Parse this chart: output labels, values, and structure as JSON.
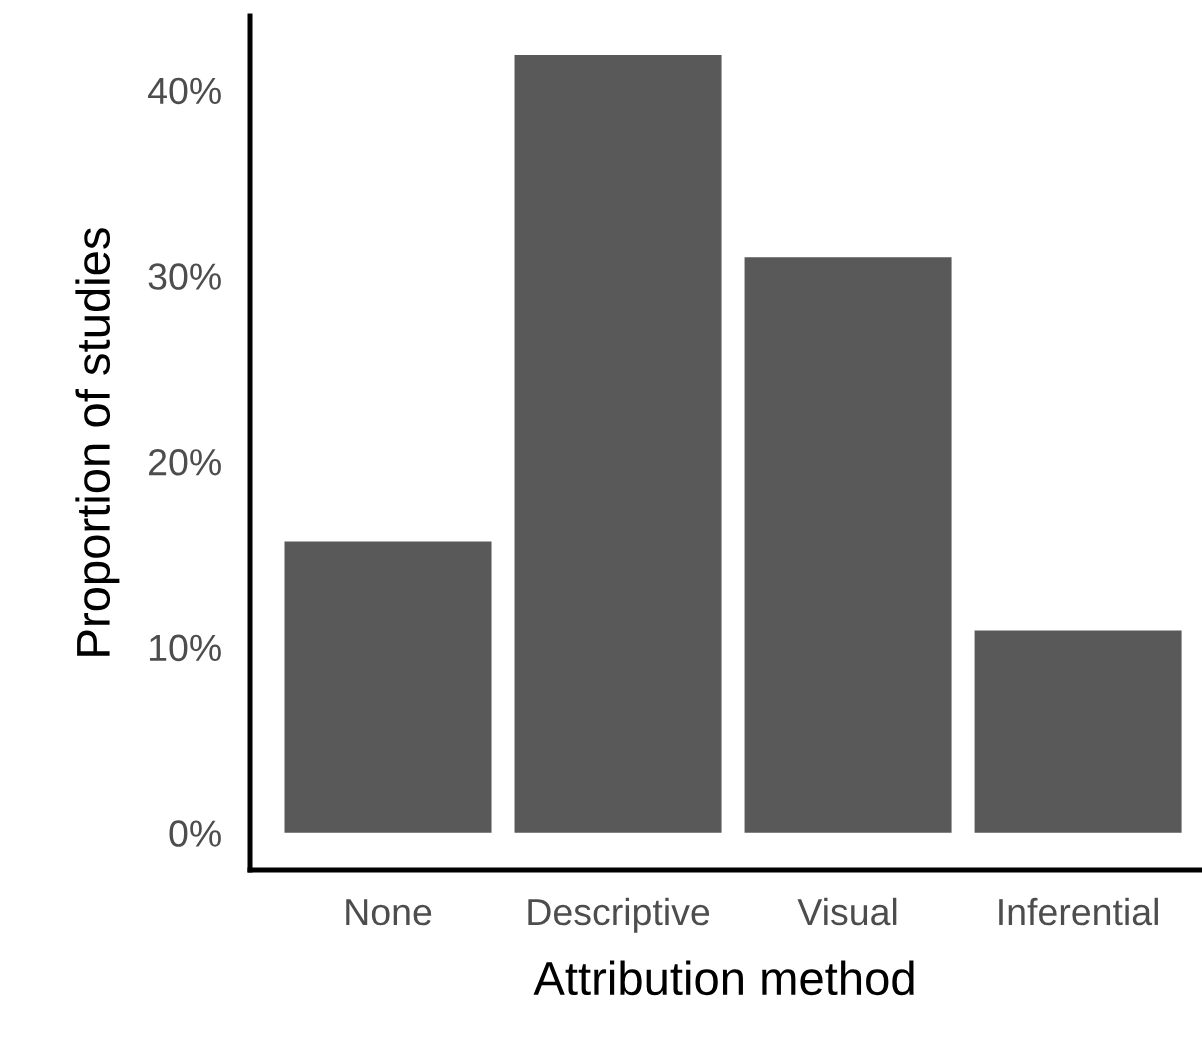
{
  "chart_data": {
    "type": "bar",
    "xlabel": "Attribution method",
    "ylabel": "Proportion of studies",
    "categories": [
      "None",
      "Descriptive",
      "Visual",
      "Inferential"
    ],
    "values": [
      15.7,
      41.9,
      31.0,
      10.9
    ],
    "color": "#595959",
    "ylim": [
      -2,
      44
    ],
    "yticks": [
      {
        "value": 0,
        "label": "0%"
      },
      {
        "value": 10,
        "label": "10%"
      },
      {
        "value": 20,
        "label": "20%"
      },
      {
        "value": 30,
        "label": "30%"
      },
      {
        "value": 40,
        "label": "40%"
      }
    ],
    "grid": false
  }
}
